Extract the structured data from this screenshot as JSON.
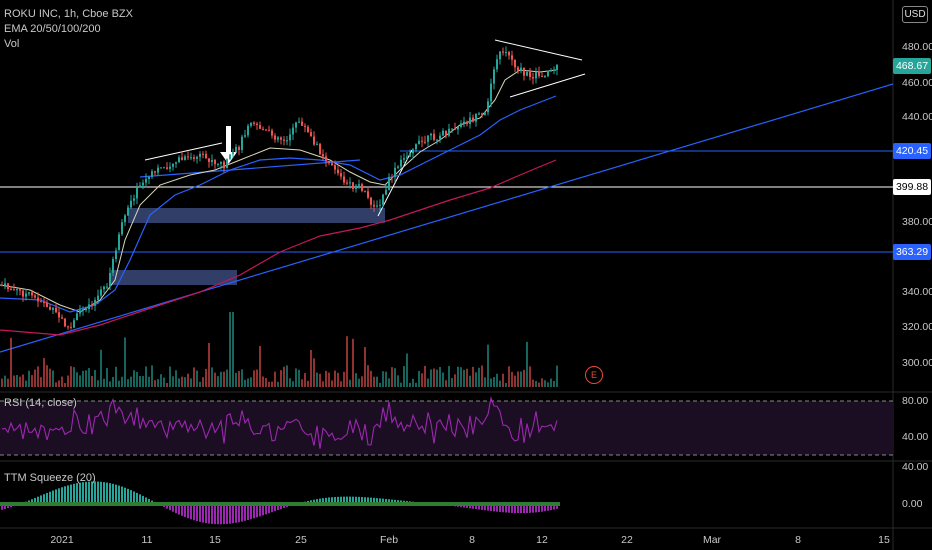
{
  "header": {
    "symbol_line": "ROKU INC, 1h, Cboe BZX",
    "ema_label": "EMA 20/50/100/200",
    "vol_label": "Vol",
    "currency_button": "USD"
  },
  "price_axis": {
    "ticks": [
      "480.00",
      "460.00",
      "440.00",
      "380.00",
      "340.00",
      "320.00",
      "300.00"
    ],
    "badges": [
      {
        "value": "468.67",
        "color": "#26a69a"
      },
      {
        "value": "420.45",
        "color": "#2962ff"
      },
      {
        "value": "399.88",
        "color": "#ffffff"
      },
      {
        "value": "363.29",
        "color": "#2962ff"
      }
    ]
  },
  "rsi_pane": {
    "label": "RSI (14, close)",
    "ticks": [
      "80.00",
      "40.00"
    ]
  },
  "squeeze_pane": {
    "label": "TTM Squeeze (20)",
    "ticks": [
      "40.00",
      "0.00"
    ]
  },
  "time_axis": {
    "labels": [
      "2021",
      "11",
      "15",
      "25",
      "Feb",
      "8",
      "12",
      "22",
      "Mar",
      "8",
      "15"
    ]
  },
  "earnings_marker": "E",
  "colors": {
    "background": "#000000",
    "up": "#26a69a",
    "down": "#ef5350",
    "ema20": "#d8d8b8",
    "ema50": "#2962ff",
    "ema100": "#c2185b",
    "rsi": "#9c27b0",
    "level_line": "#2962ff",
    "support_box": "#3a4a7a"
  }
}
